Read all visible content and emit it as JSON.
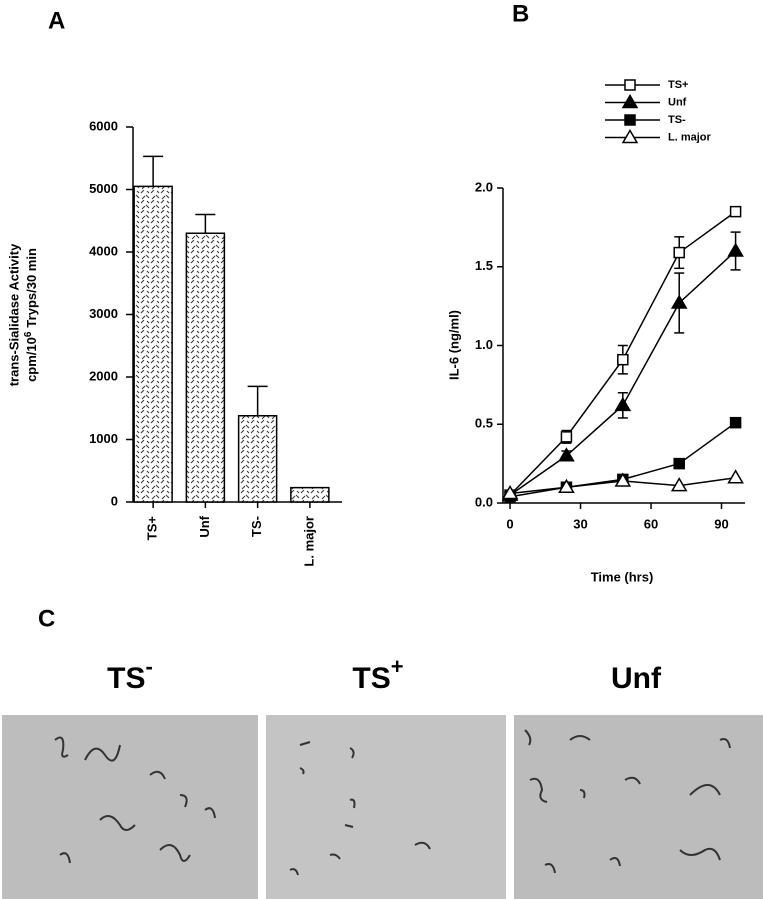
{
  "chart_data": [
    {
      "type": "bar",
      "panel": "A",
      "ylabel": "trans-Sialidase  Activity",
      "ylabel2": [
        "cpm/10",
        "6",
        "Tryps/30  min"
      ],
      "categories": [
        "TS+",
        "Unf",
        "TS-",
        "L. major"
      ],
      "values": [
        5050,
        4300,
        1380,
        230
      ],
      "errors": [
        480,
        300,
        470,
        null
      ],
      "ylim": [
        0,
        6000
      ],
      "yticks": [
        0,
        1000,
        2000,
        3000,
        4000,
        5000,
        6000
      ],
      "color": "#ffffff"
    },
    {
      "type": "line",
      "panel": "B",
      "xlabel": "Time  (hrs)",
      "ylabel": "IL-6  (ng/ml)",
      "x": [
        0,
        24,
        48,
        72,
        96
      ],
      "xlim": [
        -3,
        100
      ],
      "xticks": [
        0,
        30,
        60,
        90
      ],
      "ylim": [
        0,
        2.0
      ],
      "yticks": [
        {
          "value": 0,
          "label": "0.0"
        },
        {
          "value": 0.5,
          "label": "0.5"
        },
        {
          "value": 1.0,
          "label": "1.0"
        },
        {
          "value": 1.5,
          "label": "1.5"
        },
        {
          "value": 2.0,
          "label": "2.0"
        }
      ],
      "legend": "top-right",
      "series": [
        {
          "name": "TS+",
          "color": "#000000",
          "marker": "square-open",
          "values": [
            0.05,
            0.42,
            0.91,
            1.59,
            1.85
          ],
          "errors": [
            0.01,
            0.04,
            0.09,
            0.1,
            0.02
          ]
        },
        {
          "name": "Unf",
          "color": "#000000",
          "marker": "triangle-filled",
          "values": [
            0.05,
            0.3,
            0.62,
            1.27,
            1.6
          ],
          "errors": [
            0.01,
            0.03,
            0.08,
            0.19,
            0.12
          ]
        },
        {
          "name": "TS-",
          "color": "#000000",
          "marker": "square-filled",
          "values": [
            0.04,
            0.1,
            0.15,
            0.25,
            0.51
          ]
        },
        {
          "name": "L. major",
          "color": "#000000",
          "marker": "triangle-open",
          "values": [
            0.06,
            0.1,
            0.14,
            0.11,
            0.16
          ]
        }
      ]
    }
  ],
  "photo_panel": {
    "panel": "C",
    "photos": [
      {
        "label": "TS",
        "sup": "-"
      },
      {
        "label": "TS",
        "sup": "+"
      },
      {
        "label": "Unf"
      }
    ]
  }
}
